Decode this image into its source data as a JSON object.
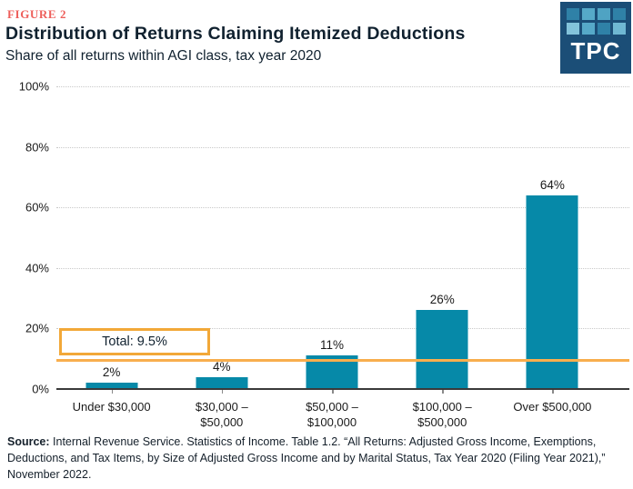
{
  "figure_label": "FIGURE 2",
  "title": "Distribution of Returns Claiming Itemized Deductions",
  "subtitle": "Share of all returns within AGI class, tax year 2020",
  "logo": {
    "text": "TPC",
    "bg": "#1b4e77",
    "square_colors": [
      "#2f81a7",
      "#56a9c8",
      "#4fa3c3",
      "#2f81a7",
      "#83c3db",
      "#56a9c8",
      "#2f81a7",
      "#6fb8d3"
    ]
  },
  "chart_data": {
    "type": "bar",
    "title": "Distribution of Returns Claiming Itemized Deductions",
    "subtitle": "Share of all returns within AGI class, tax year 2020",
    "xlabel": "",
    "ylabel": "",
    "ylim": [
      0,
      100
    ],
    "grid": "horizontal-dotted",
    "bar_color": "#0689a8",
    "y_ticks": [
      {
        "value": 0,
        "label": "0%"
      },
      {
        "value": 20,
        "label": "20%"
      },
      {
        "value": 40,
        "label": "40%"
      },
      {
        "value": 60,
        "label": "60%"
      },
      {
        "value": 80,
        "label": "80%"
      },
      {
        "value": 100,
        "label": "100%"
      }
    ],
    "bars": [
      {
        "category_lines": [
          "Under $30,000"
        ],
        "value": 2,
        "label": "2%"
      },
      {
        "category_lines": [
          "$30,000 –",
          "$50,000"
        ],
        "value": 4,
        "label": "4%"
      },
      {
        "category_lines": [
          "$50,000 –",
          "$100,000"
        ],
        "value": 11,
        "label": "11%"
      },
      {
        "category_lines": [
          "$100,000 –",
          "$500,000"
        ],
        "value": 26,
        "label": "26%"
      },
      {
        "category_lines": [
          "Over $500,000"
        ],
        "value": 64,
        "label": "64%"
      }
    ],
    "reference_line": {
      "value": 9.5,
      "label": "Total: 9.5%",
      "color": "#f8ae4d"
    }
  },
  "source": {
    "label": "Source:",
    "text": " Internal Revenue Service. Statistics of Income. Table 1.2. “All Returns: Adjusted Gross Income, Exemptions, Deductions, and Tax Items, by Size of Adjusted Gross Income and by Marital Status, Tax Year 2020 (Filing Year 2021),” November 2022."
  }
}
